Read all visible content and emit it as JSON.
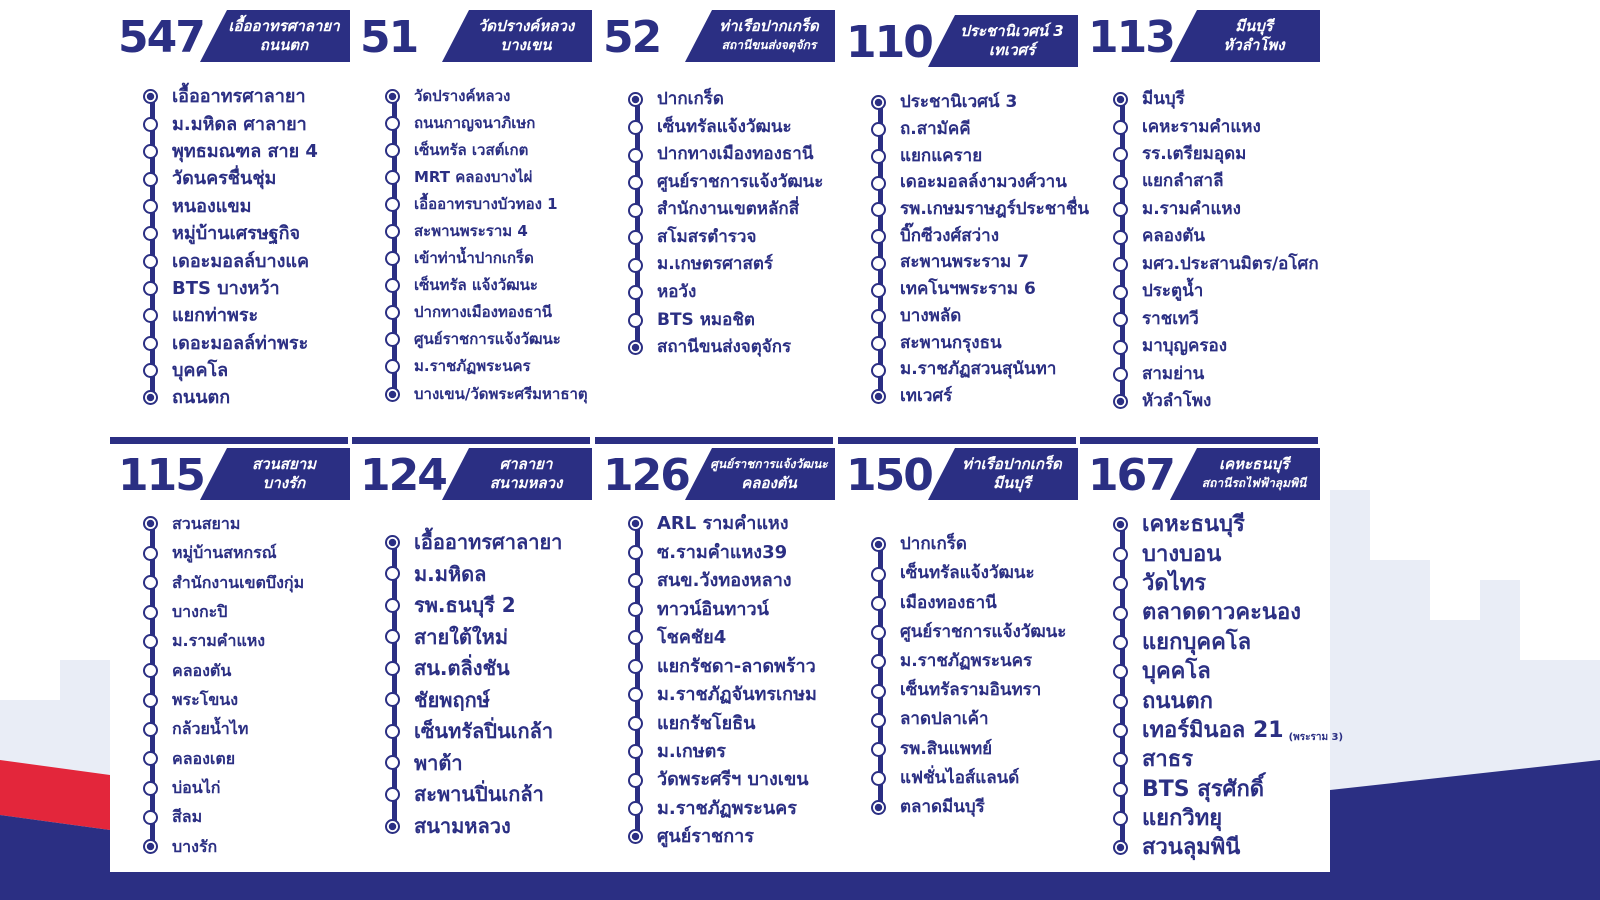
{
  "colors": {
    "brand": "#2b2f83",
    "accent_red": "#e3263b",
    "background": "#ffffff"
  },
  "routes": [
    {
      "number": "547",
      "header": [
        "เอื้ออาทรศาลายา",
        "ถนนตก"
      ],
      "stops": [
        "เอื้ออาทรศาลายา",
        "ม.มหิดล ศาลายา",
        "พุทธมณฑล สาย 4",
        "วัดนครชื่นชุ่ม",
        "หนองแขม",
        "หมู่บ้านเศรษฐกิจ",
        "เดอะมอลล์บางแค",
        "BTS บางหว้า",
        "แยกท่าพระ",
        "เดอะมอลล์ท่าพระ",
        "บุคคโล",
        "ถนนตก"
      ]
    },
    {
      "number": "51",
      "header": [
        "วัดปรางค์หลวง",
        "บางเขน"
      ],
      "stops": [
        "วัดปรางค์หลวง",
        "ถนนกาญจนาภิเษก",
        "เซ็นทรัล เวสต์เกต",
        "MRT คลองบางไผ่",
        "เอื้ออาทรบางบัวทอง 1",
        "สะพานพระราม 4",
        "เข้าท่าน้ำปากเกร็ด",
        "เซ็นทรัล แจ้งวัฒนะ",
        "ปากทางเมืองทองธานี",
        "ศูนย์ราชการแจ้งวัฒนะ",
        "ม.ราชภัฏพระนคร",
        "บางเขน/วัดพระศรีมหาธาตุ"
      ]
    },
    {
      "number": "52",
      "header": [
        "ท่าเรือปากเกร็ด",
        "สถานีขนส่งจตุจักร"
      ],
      "stops": [
        "ปากเกร็ด",
        "เซ็นทรัลแจ้งวัฒนะ",
        "ปากทางเมืองทองธานี",
        "ศูนย์ราชการแจ้งวัฒนะ",
        "สำนักงานเขตหลักสี่",
        "สโมสรตำรวจ",
        "ม.เกษตรศาสตร์",
        "หอวัง",
        "BTS หมอชิต",
        "สถานีขนส่งจตุจักร"
      ]
    },
    {
      "number": "110",
      "header": [
        "ประชานิเวศน์ 3",
        "เทเวศร์"
      ],
      "stops": [
        "ประชานิเวศน์ 3",
        "ถ.สามัคคี",
        "แยกแคราย",
        "เดอะมอลล์งามวงศ์วาน",
        "รพ.เกษมราษฎร์ประชาชื่น",
        "บิ๊กซีวงศ์สว่าง",
        "สะพานพระราม 7",
        "เทคโนฯพระราม 6",
        "บางพลัด",
        "สะพานกรุงธน",
        "ม.ราชภัฏสวนสุนันทา",
        "เทเวศร์"
      ]
    },
    {
      "number": "113",
      "header": [
        "มีนบุรี",
        "หัวลำโพง"
      ],
      "stops": [
        "มีนบุรี",
        "เคหะรามคำแหง",
        "รร.เตรียมอุดม",
        "แยกลำสาลี",
        "ม.รามคำแหง",
        "คลองตัน",
        "มศว.ประสานมิตร/อโศก",
        "ประตูน้ำ",
        "ราชเทวี",
        "มาบุญครอง",
        "สามย่าน",
        "หัวลำโพง"
      ]
    },
    {
      "number": "115",
      "header": [
        "สวนสยาม",
        "บางรัก"
      ],
      "stops": [
        "สวนสยาม",
        "หมู่บ้านสหกรณ์",
        "สำนักงานเขตบึงกุ่ม",
        "บางกะปิ",
        "ม.รามคำแหง",
        "คลองตัน",
        "พระโขนง",
        "กล้วยน้ำไท",
        "คลองเตย",
        "บ่อนไก่",
        "สีลม",
        "บางรัก"
      ]
    },
    {
      "number": "124",
      "header": [
        "ศาลายา",
        "สนามหลวง"
      ],
      "stops": [
        "เอื้ออาทรศาลายา",
        "ม.มหิดล",
        "รพ.ธนบุรี 2",
        "สายใต้ใหม่",
        "สน.ตลิ่งชัน",
        "ชัยพฤกษ์",
        "เซ็นทรัลปิ่นเกล้า",
        "พาต้า",
        "สะพานปิ่นเกล้า",
        "สนามหลวง"
      ]
    },
    {
      "number": "126",
      "header": [
        "ศูนย์ราชการแจ้งวัฒนะ",
        "คลองตัน"
      ],
      "stops": [
        "ARL รามคำแหง",
        "ซ.รามคำแหง39",
        "สนข.วังทองหลาง",
        "ทาวน์อินทาวน์",
        "โชคชัย4",
        "แยกรัชดา-ลาดพร้าว",
        "ม.ราชภัฏจันทรเกษม",
        "แยกรัชโยธิน",
        "ม.เกษตร",
        "วัดพระศรีฯ บางเขน",
        "ม.ราชภัฏพระนคร",
        "ศูนย์ราชการ"
      ]
    },
    {
      "number": "150",
      "header": [
        "ท่าเรือปากเกร็ด",
        "มีนบุรี"
      ],
      "stops": [
        "ปากเกร็ด",
        "เซ็นทรัลแจ้งวัฒนะ",
        "เมืองทองธานี",
        "ศูนย์ราชการแจ้งวัฒนะ",
        "ม.ราชภัฏพระนคร",
        "เซ็นทรัลรามอินทรา",
        "ลาดปลาเค้า",
        "รพ.สินแพทย์",
        "แฟชั่นไอส์แลนด์",
        "ตลาดมีนบุรี"
      ]
    },
    {
      "number": "167",
      "header": [
        "เคหะธนบุรี",
        "สถานีรถไฟฟ้าลุมพินี"
      ],
      "stops": [
        "เคหะธนบุรี",
        "บางบอน",
        "วัดไทร",
        "ตลาดดาวคะนอง",
        "แยกบุคคโล",
        "บุคคโล",
        "ถนนตก",
        "เทอร์มินอล 21",
        "สาธร",
        "BTS สุรศักดิ์",
        "แยกวิทยุ",
        "สวนลุมพินี"
      ],
      "notes": {
        "7": "(พระราม 3)"
      }
    }
  ]
}
